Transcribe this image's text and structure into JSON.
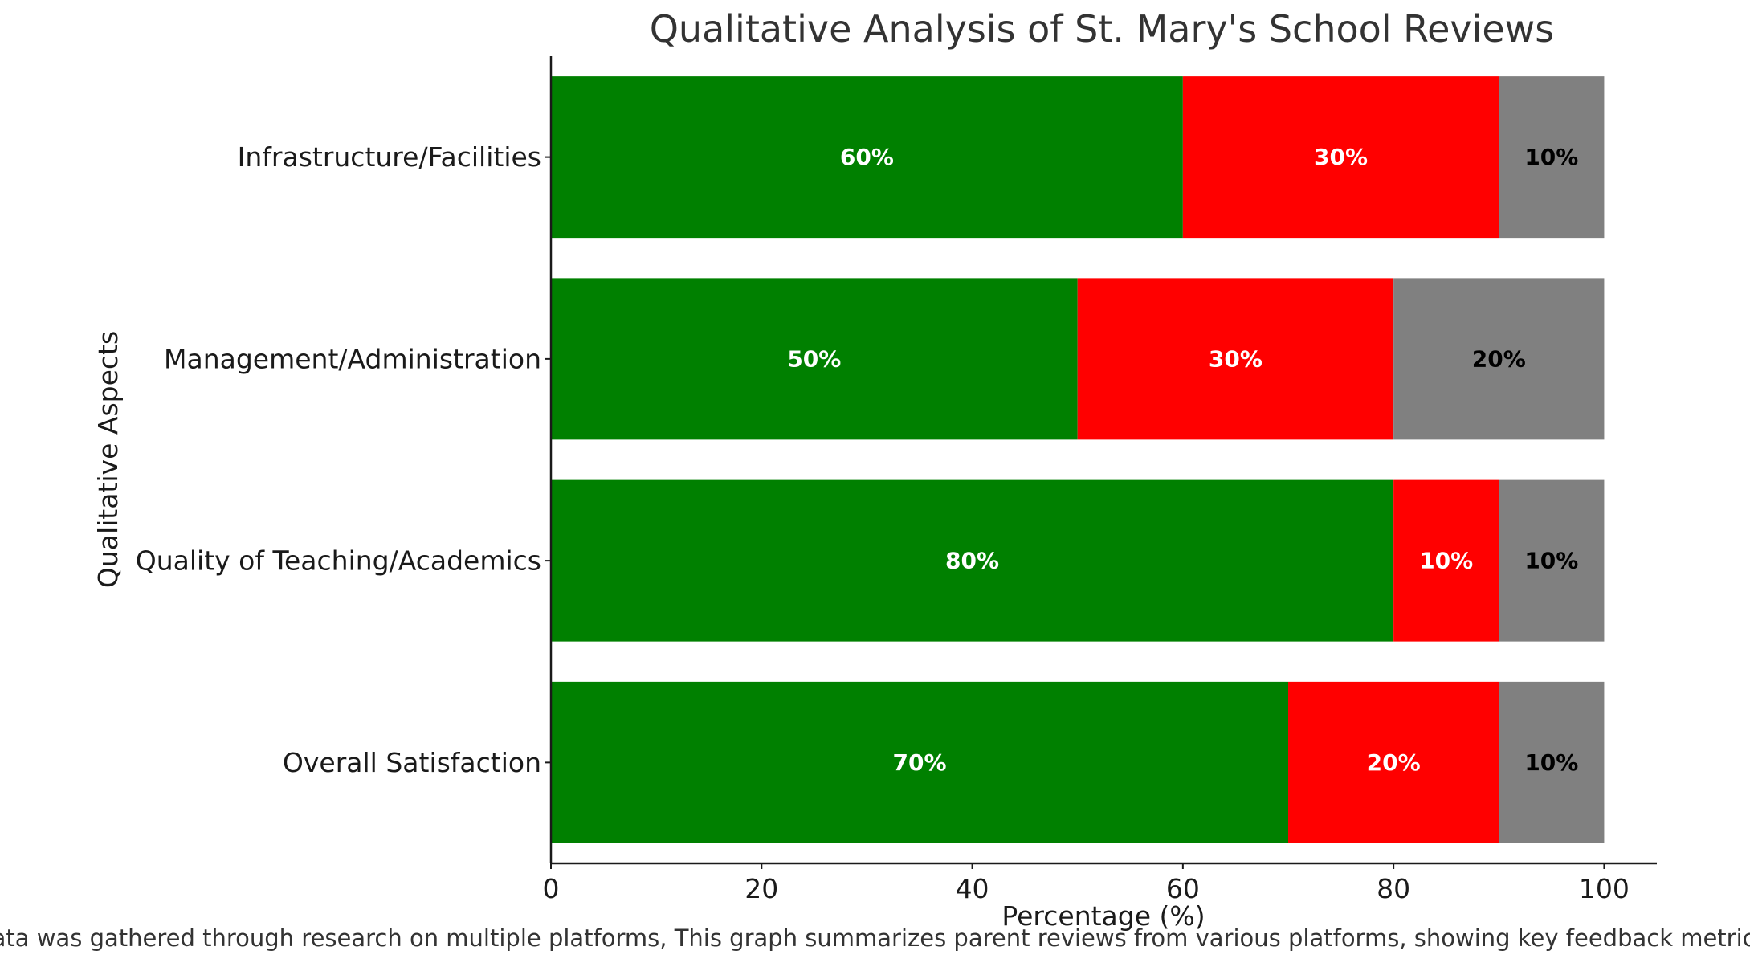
{
  "chart_data": {
    "type": "bar",
    "orientation": "horizontal",
    "stacked": true,
    "title": "Qualitative Analysis of St. Mary's School Reviews",
    "xlabel": "Percentage (%)",
    "ylabel": "Qualitative Aspects",
    "xlim": [
      0,
      105
    ],
    "xticks": [
      0,
      20,
      40,
      60,
      80,
      100
    ],
    "categories": [
      "Overall Satisfaction",
      "Quality of Teaching/Academics",
      "Management/Administration",
      "Infrastructure/Facilities"
    ],
    "series": [
      {
        "color": "#008000",
        "label_color": "#ffffff",
        "values": [
          70,
          80,
          50,
          60
        ]
      },
      {
        "color": "#ff0000",
        "label_color": "#ffffff",
        "values": [
          20,
          10,
          30,
          30
        ]
      },
      {
        "color": "#808080",
        "label_color": "#000000",
        "values": [
          10,
          10,
          20,
          10
        ]
      }
    ],
    "value_format": "{v}%",
    "grid": false,
    "legend": "none"
  },
  "caption": "Data was gathered through research on multiple platforms, This graph summarizes parent reviews from various platforms, showing key feedback metrics"
}
